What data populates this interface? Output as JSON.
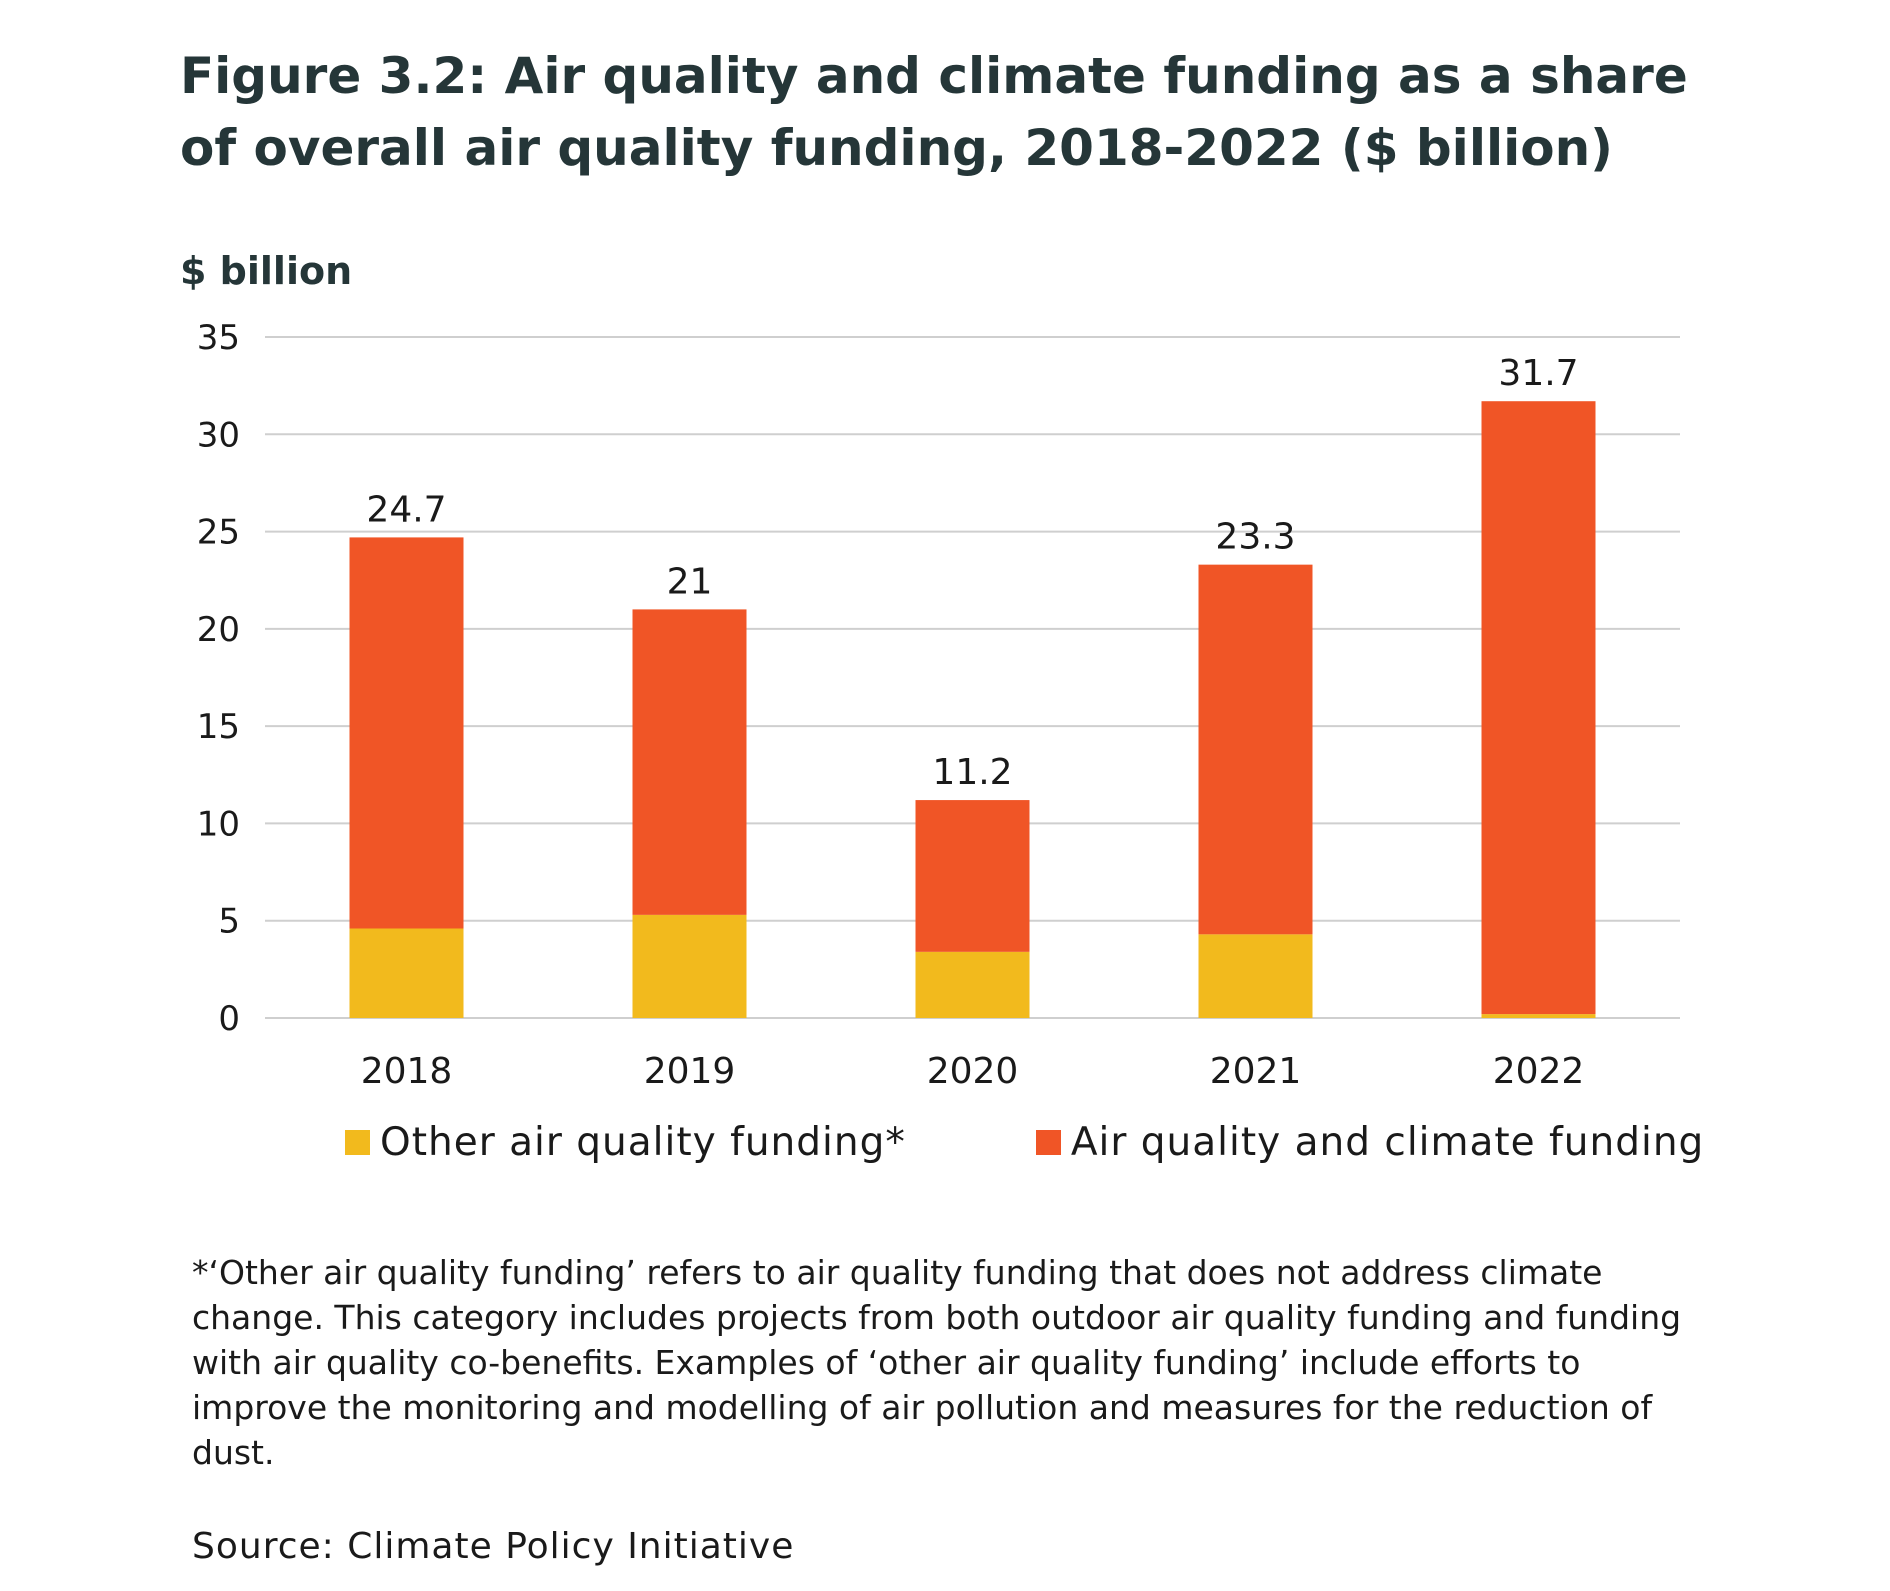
{
  "title": "Figure 3.2: Air quality and climate funding as a share of overall air quality funding, 2018-2022 ($ billion)",
  "legend": {
    "other_label": "Other air quality funding*",
    "climate_label": "Air quality and climate funding"
  },
  "footnote": "*‘Other air quality funding’ refers to air quality funding that does not address climate change. This category includes projects from both outdoor air quality funding and funding with air quality co-benefits. Examples of ‘other air quality funding’ include efforts to improve the monitoring and modelling of air pollution and measures for the reduction of dust.",
  "source": "Source: Climate Policy Initiative",
  "chart_data": {
    "type": "bar",
    "stacked": true,
    "title": "Figure 3.2: Air quality and climate funding as a share of overall air quality funding, 2018-2022 ($ billion)",
    "ylabel": "$ billion",
    "xlabel": "",
    "categories": [
      "2018",
      "2019",
      "2020",
      "2021",
      "2022"
    ],
    "ylim": [
      0,
      35
    ],
    "yticks": [
      0,
      5,
      10,
      15,
      20,
      25,
      30,
      35
    ],
    "grid": true,
    "legend_position": "bottom",
    "series": [
      {
        "name": "Other air quality funding*",
        "color": "#F2BA1D",
        "values": [
          4.6,
          5.3,
          3.4,
          4.3,
          0.2
        ]
      },
      {
        "name": "Air quality and climate funding",
        "color": "#F05526",
        "values": [
          20.1,
          15.7,
          7.8,
          19.0,
          31.5
        ]
      }
    ],
    "totals": [
      24.7,
      21,
      11.2,
      23.3,
      31.7
    ],
    "total_labels": [
      "24.7",
      "21",
      "11.2",
      "23.3",
      "31.7"
    ]
  }
}
